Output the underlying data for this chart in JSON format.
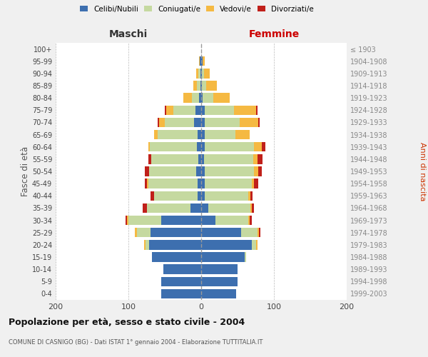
{
  "age_groups_bottom_to_top": [
    "0-4",
    "5-9",
    "10-14",
    "15-19",
    "20-24",
    "25-29",
    "30-34",
    "35-39",
    "40-44",
    "45-49",
    "50-54",
    "55-59",
    "60-64",
    "65-69",
    "70-74",
    "75-79",
    "80-84",
    "85-89",
    "90-94",
    "95-99",
    "100+"
  ],
  "birth_years_bottom_to_top": [
    "1999-2003",
    "1994-1998",
    "1989-1993",
    "1984-1988",
    "1979-1983",
    "1974-1978",
    "1969-1973",
    "1964-1968",
    "1959-1963",
    "1954-1958",
    "1949-1953",
    "1944-1948",
    "1939-1943",
    "1934-1938",
    "1929-1933",
    "1924-1928",
    "1919-1923",
    "1914-1918",
    "1909-1913",
    "1904-1908",
    "≤ 1903"
  ],
  "maschi": {
    "celibi": [
      55,
      55,
      52,
      68,
      72,
      70,
      55,
      15,
      5,
      5,
      7,
      4,
      6,
      5,
      10,
      8,
      3,
      1,
      1,
      2,
      0
    ],
    "coniugati": [
      0,
      0,
      0,
      0,
      4,
      18,
      45,
      60,
      60,
      68,
      65,
      65,
      65,
      55,
      40,
      30,
      10,
      5,
      3,
      0,
      0
    ],
    "vedovi": [
      0,
      0,
      0,
      0,
      2,
      3,
      2,
      0,
      0,
      2,
      0,
      0,
      2,
      5,
      8,
      10,
      12,
      5,
      3,
      1,
      0
    ],
    "divorziati": [
      0,
      0,
      0,
      0,
      0,
      0,
      2,
      5,
      5,
      2,
      5,
      4,
      0,
      0,
      2,
      2,
      0,
      0,
      0,
      0,
      0
    ]
  },
  "femmine": {
    "nubili": [
      48,
      50,
      50,
      60,
      70,
      55,
      20,
      10,
      5,
      5,
      5,
      4,
      5,
      5,
      5,
      5,
      2,
      1,
      1,
      2,
      0
    ],
    "coniugate": [
      0,
      0,
      0,
      2,
      5,
      22,
      45,
      58,
      60,
      65,
      68,
      68,
      68,
      42,
      48,
      40,
      15,
      6,
      3,
      0,
      0
    ],
    "vedove": [
      0,
      0,
      0,
      0,
      2,
      2,
      2,
      2,
      3,
      3,
      5,
      5,
      10,
      20,
      25,
      30,
      22,
      15,
      8,
      3,
      0
    ],
    "divorziate": [
      0,
      0,
      0,
      0,
      0,
      2,
      3,
      3,
      3,
      5,
      5,
      7,
      5,
      0,
      2,
      2,
      0,
      0,
      0,
      0,
      0
    ]
  },
  "colors": {
    "celibi_nubili": "#3d6faf",
    "coniugati": "#c5d9a0",
    "vedovi": "#f5b942",
    "divorziati": "#c0201a"
  },
  "xlim": 200,
  "title": "Popolazione per età, sesso e stato civile - 2004",
  "subtitle": "COMUNE DI CASNIGO (BG) - Dati ISTAT 1° gennaio 2004 - Elaborazione TUTTITALIA.IT",
  "ylabel_left": "Fasce di età",
  "ylabel_right": "Anni di nascita",
  "xlabel_left": "Maschi",
  "xlabel_right": "Femmine",
  "bg_color": "#f0f0f0",
  "plot_bg": "#ffffff"
}
